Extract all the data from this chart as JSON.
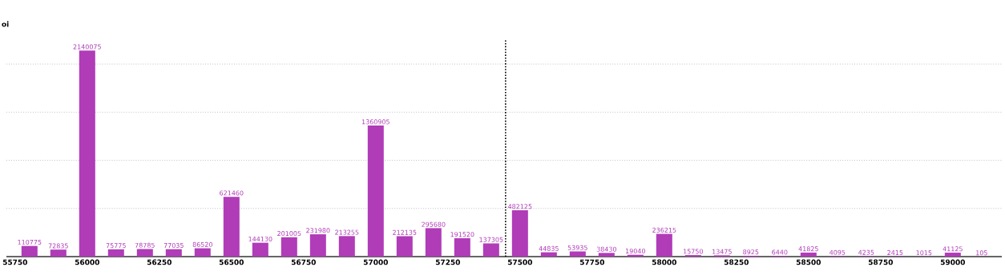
{
  "chart_data": {
    "type": "bar",
    "ylabel": "oi",
    "x": [
      55800,
      55900,
      56000,
      56100,
      56200,
      56300,
      56400,
      56500,
      56600,
      56700,
      56800,
      56900,
      57000,
      57100,
      57200,
      57300,
      57400,
      57500,
      57600,
      57700,
      57800,
      57900,
      58000,
      58100,
      58200,
      58300,
      58400,
      58500,
      58600,
      58700,
      58800,
      58900,
      59000,
      59100
    ],
    "values": [
      110775,
      72835,
      2140075,
      75775,
      78785,
      77035,
      86520,
      621460,
      144130,
      201005,
      231980,
      213255,
      1360905,
      212135,
      295680,
      191520,
      137305,
      482125,
      44835,
      53935,
      38430,
      19040,
      236215,
      15750,
      13475,
      8925,
      6440,
      41825,
      4095,
      4235,
      2415,
      1015,
      41125,
      105
    ],
    "color": "#b03cb8",
    "data_labels": true,
    "xlim": [
      55720,
      59170
    ],
    "xticks": [
      55750,
      56000,
      56250,
      56500,
      56750,
      57000,
      57250,
      57500,
      57750,
      58000,
      58250,
      58500,
      58750,
      59000
    ],
    "ylim": [
      0,
      2250000
    ],
    "yticks": [
      {
        "value": 500000,
        "label": null
      },
      {
        "value": 1000000,
        "label": null
      },
      {
        "value": 1500000,
        "label": null
      },
      {
        "value": 2000000,
        "label": null
      }
    ],
    "tick_labels": "x",
    "grid": "y",
    "ref_lines": [
      {
        "axis": "x",
        "value": 57450,
        "line_style": "dotted",
        "color": "#000000"
      }
    ]
  }
}
